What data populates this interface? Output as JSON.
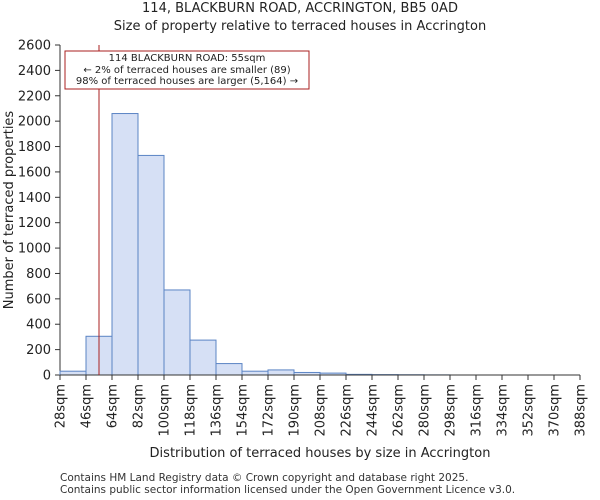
{
  "title_line1": "114, BLACKBURN ROAD, ACCRINGTON, BB5 0AD",
  "title_line2": "Size of property relative to terraced houses in Accrington",
  "footer_line1": "Contains HM Land Registry data © Crown copyright and database right 2025.",
  "footer_line2": "Contains public sector information licensed under the Open Government Licence v3.0.",
  "colors": {
    "bar_fill": "#d6e0f5",
    "bar_stroke": "#5b84c4",
    "marker": "#aa1f1f"
  },
  "chart_data": {
    "type": "bar",
    "title": "Size of property relative to terraced houses in Accrington",
    "xlabel": "Distribution of terraced houses by size in Accrington",
    "ylabel": "Number of terraced properties",
    "bin_edges": [
      28,
      46,
      64,
      82,
      100,
      118,
      136,
      154,
      172,
      190,
      208,
      226,
      244,
      262,
      280,
      298,
      316,
      334,
      352,
      370,
      388
    ],
    "x_tick_labels": [
      "28sqm",
      "46sqm",
      "64sqm",
      "82sqm",
      "100sqm",
      "118sqm",
      "136sqm",
      "154sqm",
      "172sqm",
      "190sqm",
      "208sqm",
      "226sqm",
      "244sqm",
      "262sqm",
      "280sqm",
      "298sqm",
      "316sqm",
      "334sqm",
      "352sqm",
      "370sqm",
      "388sqm"
    ],
    "values": [
      30,
      305,
      2060,
      1730,
      670,
      275,
      90,
      30,
      40,
      20,
      15,
      5,
      3,
      2,
      1,
      0,
      0,
      0,
      0,
      0
    ],
    "ylim": [
      0,
      2600
    ],
    "yticks": [
      0,
      200,
      400,
      600,
      800,
      1000,
      1200,
      1400,
      1600,
      1800,
      2000,
      2200,
      2400,
      2600
    ],
    "property_marker": {
      "x": 55
    },
    "annotation": {
      "line1": "114 BLACKBURN ROAD: 55sqm",
      "line2": "← 2% of terraced houses are smaller (89)",
      "line3": "98% of terraced houses are larger (5,164) →"
    }
  }
}
